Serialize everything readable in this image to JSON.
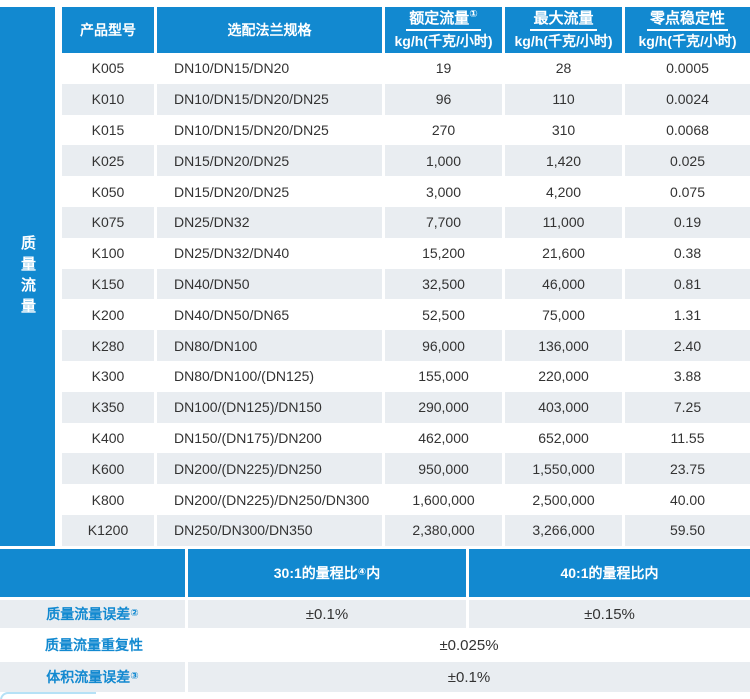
{
  "left_label": "质量流量",
  "colors": {
    "accent_blue": "#1289d0",
    "row_alt_gray": "#e9edf1",
    "text_dark": "#333333",
    "corner_arc_light_blue": "#b5e1f6"
  },
  "table": {
    "headers": {
      "col1": "产品型号",
      "col2": "选配法兰规格",
      "col3": {
        "line1": "额定流量",
        "sup": "①",
        "line2": "kg/h(千克/小时)"
      },
      "col4": {
        "line1": "最大流量",
        "line2": "kg/h(千克/小时)"
      },
      "col5": {
        "line1": "零点稳定性",
        "line2": "kg/h(千克/小时)"
      }
    },
    "rows": [
      {
        "model": "K005",
        "flange": "DN10/DN15/DN20",
        "rated": "19",
        "max": "28",
        "zero": "0.0005"
      },
      {
        "model": "K010",
        "flange": "DN10/DN15/DN20/DN25",
        "rated": "96",
        "max": "110",
        "zero": "0.0024"
      },
      {
        "model": "K015",
        "flange": "DN10/DN15/DN20/DN25",
        "rated": "270",
        "max": "310",
        "zero": "0.0068"
      },
      {
        "model": "K025",
        "flange": "DN15/DN20/DN25",
        "rated": "1,000",
        "max": "1,420",
        "zero": "0.025"
      },
      {
        "model": "K050",
        "flange": "DN15/DN20/DN25",
        "rated": "3,000",
        "max": "4,200",
        "zero": "0.075"
      },
      {
        "model": "K075",
        "flange": "DN25/DN32",
        "rated": "7,700",
        "max": "11,000",
        "zero": "0.19"
      },
      {
        "model": "K100",
        "flange": "DN25/DN32/DN40",
        "rated": "15,200",
        "max": "21,600",
        "zero": "0.38"
      },
      {
        "model": "K150",
        "flange": "DN40/DN50",
        "rated": "32,500",
        "max": "46,000",
        "zero": "0.81"
      },
      {
        "model": "K200",
        "flange": "DN40/DN50/DN65",
        "rated": "52,500",
        "max": "75,000",
        "zero": "1.31"
      },
      {
        "model": "K280",
        "flange": "DN80/DN100",
        "rated": "96,000",
        "max": "136,000",
        "zero": "2.40"
      },
      {
        "model": "K300",
        "flange": "DN80/DN100/(DN125)",
        "rated": "155,000",
        "max": "220,000",
        "zero": "3.88"
      },
      {
        "model": "K350",
        "flange": "DN100/(DN125)/DN150",
        "rated": "290,000",
        "max": "403,000",
        "zero": "7.25"
      },
      {
        "model": "K400",
        "flange": "DN150/(DN175)/DN200",
        "rated": "462,000",
        "max": "652,000",
        "zero": "11.55"
      },
      {
        "model": "K600",
        "flange": "DN200/(DN225)/DN250",
        "rated": "950,000",
        "max": "1,550,000",
        "zero": "23.75"
      },
      {
        "model": "K800",
        "flange": "DN200/(DN225)/DN250/DN300",
        "rated": "1,600,000",
        "max": "2,500,000",
        "zero": "40.00"
      },
      {
        "model": "K1200",
        "flange": "DN250/DN300/DN350",
        "rated": "2,380,000",
        "max": "3,266,000",
        "zero": "59.50"
      }
    ]
  },
  "accuracy": {
    "header": {
      "range30": {
        "pre": "30:1的量程比",
        "sup": "④",
        "post": "内"
      },
      "range40": "40:1的量程比内"
    },
    "mass_flow_error": {
      "label": "质量流量误差",
      "sup": "②",
      "val30": "±0.1%",
      "val40": "±0.15%"
    },
    "mass_flow_repeatability": {
      "label": "质量流量重复性",
      "value": "±0.025%"
    },
    "volume_flow_error": {
      "label": "体积流量误差",
      "sup": "③",
      "value": "±0.1%"
    }
  }
}
